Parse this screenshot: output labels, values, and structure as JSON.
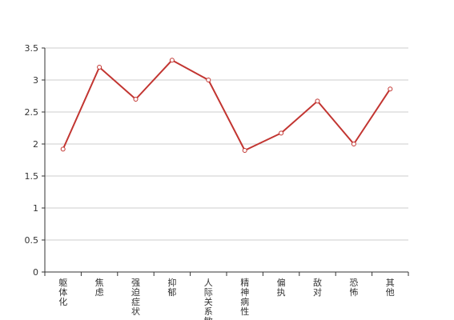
{
  "chart_data": {
    "type": "line",
    "title": "",
    "xlabel": "",
    "ylabel": "",
    "categories": [
      "躯体化",
      "焦虑",
      "强迫症状",
      "抑郁",
      "人际关系敏感",
      "精神病性",
      "偏执",
      "敌对",
      "恐怖",
      "其他"
    ],
    "series": [
      {
        "values": [
          1.92,
          3.2,
          2.7,
          3.31,
          3.0,
          1.9,
          2.17,
          2.67,
          2.0,
          2.86
        ]
      }
    ],
    "ylim": [
      0,
      3.5
    ],
    "yticks": [
      0,
      0.5,
      1,
      1.5,
      2,
      2.5,
      3,
      3.5
    ],
    "ytick_labels": [
      "0",
      "0.5",
      "1",
      "1.5",
      "2",
      "2.5",
      "3",
      "3.5"
    ],
    "grid": true,
    "legend": "none",
    "colors": {
      "line": "#c23531",
      "grid": "#cccccc",
      "axis": "#333333",
      "point_fill": "#ffffff"
    }
  }
}
